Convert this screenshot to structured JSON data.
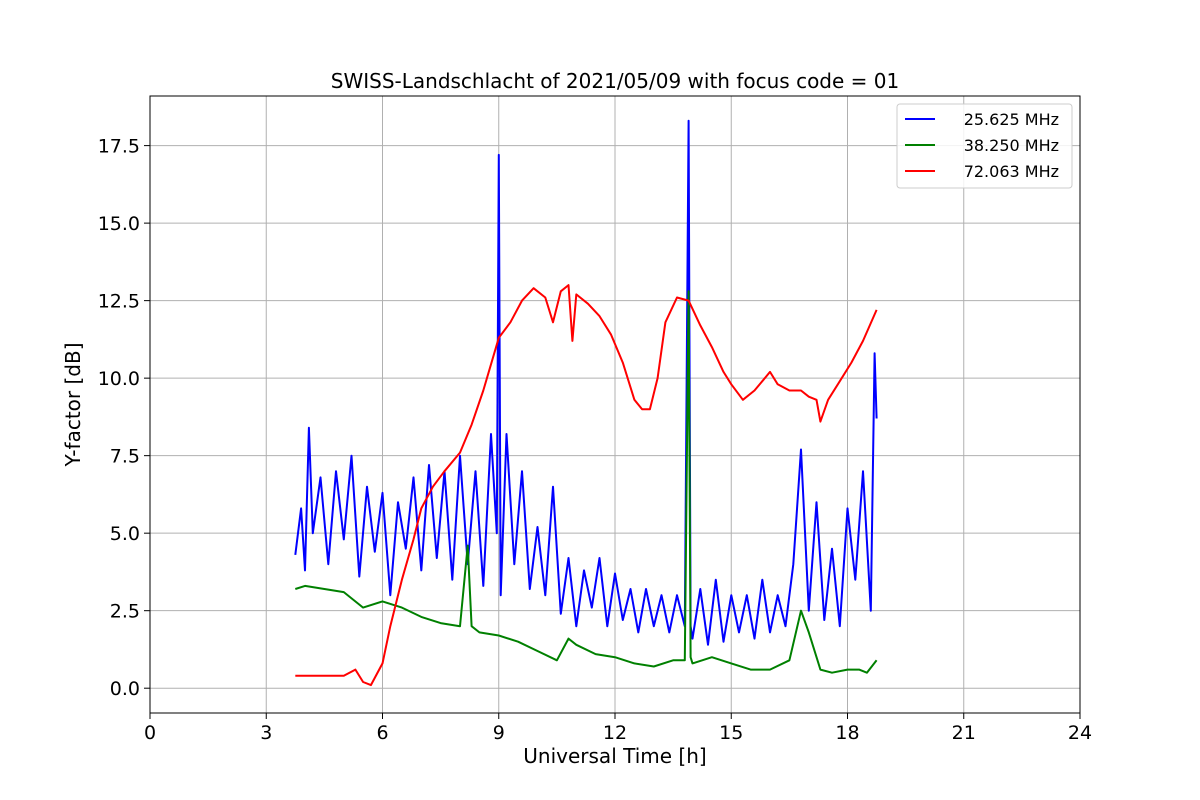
{
  "chart_data": {
    "type": "line",
    "title": "SWISS-Landschlacht of 2021/05/09 with focus code = 01",
    "xlabel": "Universal Time [h]",
    "ylabel": "Y-factor [dB]",
    "xlim": [
      0,
      24
    ],
    "ylim": [
      -0.8,
      19.1
    ],
    "xticks": [
      0,
      3,
      6,
      9,
      12,
      15,
      18,
      21,
      24
    ],
    "xtick_labels": [
      "0",
      "3",
      "6",
      "9",
      "12",
      "15",
      "18",
      "21",
      "24"
    ],
    "yticks": [
      0,
      2.5,
      5,
      7.5,
      10,
      12.5,
      15,
      17.5
    ],
    "ytick_labels": [
      "0.0",
      "2.5",
      "5.0",
      "7.5",
      "10.0",
      "12.5",
      "15.0",
      "17.5"
    ],
    "grid": true,
    "legend_position": "top-right",
    "series": [
      {
        "name": "25.625 MHz",
        "color": "#0000ff",
        "x": [
          3.75,
          3.9,
          4.0,
          4.1,
          4.2,
          4.4,
          4.6,
          4.8,
          5.0,
          5.2,
          5.4,
          5.6,
          5.8,
          6.0,
          6.2,
          6.4,
          6.6,
          6.8,
          7.0,
          7.2,
          7.4,
          7.6,
          7.8,
          8.0,
          8.2,
          8.4,
          8.6,
          8.8,
          8.95,
          9.0,
          9.05,
          9.2,
          9.4,
          9.6,
          9.8,
          10.0,
          10.2,
          10.4,
          10.6,
          10.8,
          11.0,
          11.2,
          11.4,
          11.6,
          11.8,
          12.0,
          12.2,
          12.4,
          12.6,
          12.8,
          13.0,
          13.2,
          13.4,
          13.6,
          13.8,
          13.9,
          13.95,
          14.0,
          14.2,
          14.4,
          14.6,
          14.8,
          15.0,
          15.2,
          15.4,
          15.6,
          15.8,
          16.0,
          16.2,
          16.4,
          16.6,
          16.8,
          17.0,
          17.2,
          17.4,
          17.6,
          17.8,
          18.0,
          18.2,
          18.4,
          18.6,
          18.7,
          18.75
        ],
        "y": [
          4.3,
          5.8,
          3.8,
          8.4,
          5.0,
          6.8,
          4.0,
          7.0,
          4.8,
          7.5,
          3.6,
          6.5,
          4.4,
          6.3,
          3.0,
          6.0,
          4.5,
          6.8,
          3.8,
          7.2,
          4.2,
          7.0,
          3.5,
          7.5,
          4.0,
          7.0,
          3.3,
          8.2,
          5.0,
          17.2,
          3.0,
          8.2,
          4.0,
          7.0,
          3.2,
          5.2,
          3.0,
          6.5,
          2.4,
          4.2,
          2.0,
          3.8,
          2.6,
          4.2,
          2.0,
          3.7,
          2.2,
          3.2,
          1.8,
          3.2,
          2.0,
          3.0,
          1.8,
          3.0,
          2.0,
          18.3,
          2.0,
          1.6,
          3.2,
          1.4,
          3.5,
          1.5,
          3.0,
          1.8,
          3.0,
          1.6,
          3.5,
          1.8,
          3.0,
          2.0,
          4.0,
          7.7,
          2.5,
          6.0,
          2.2,
          4.5,
          2.0,
          5.8,
          3.5,
          7.0,
          2.5,
          10.8,
          8.7
        ]
      },
      {
        "name": "38.250 MHz",
        "color": "#008000",
        "x": [
          3.75,
          4.0,
          4.5,
          5.0,
          5.5,
          6.0,
          6.5,
          7.0,
          7.5,
          8.0,
          8.2,
          8.3,
          8.5,
          9.0,
          9.5,
          10.0,
          10.5,
          10.8,
          11.0,
          11.5,
          12.0,
          12.5,
          13.0,
          13.5,
          13.8,
          13.9,
          13.95,
          14.0,
          14.5,
          15.0,
          15.5,
          16.0,
          16.5,
          16.8,
          17.0,
          17.3,
          17.6,
          18.0,
          18.3,
          18.5,
          18.75
        ],
        "y": [
          3.2,
          3.3,
          3.2,
          3.1,
          2.6,
          2.8,
          2.6,
          2.3,
          2.1,
          2.0,
          4.6,
          2.0,
          1.8,
          1.7,
          1.5,
          1.2,
          0.9,
          1.6,
          1.4,
          1.1,
          1.0,
          0.8,
          0.7,
          0.9,
          0.9,
          12.8,
          1.0,
          0.8,
          1.0,
          0.8,
          0.6,
          0.6,
          0.9,
          2.5,
          1.8,
          0.6,
          0.5,
          0.6,
          0.6,
          0.5,
          0.9
        ]
      },
      {
        "name": "72.063 MHz",
        "color": "#ff0000",
        "x": [
          3.75,
          4.0,
          4.5,
          5.0,
          5.3,
          5.5,
          5.7,
          6.0,
          6.2,
          6.5,
          6.8,
          7.0,
          7.3,
          7.6,
          8.0,
          8.3,
          8.6,
          9.0,
          9.3,
          9.6,
          9.9,
          10.2,
          10.4,
          10.6,
          10.8,
          10.9,
          11.0,
          11.3,
          11.6,
          11.9,
          12.2,
          12.5,
          12.7,
          12.9,
          13.1,
          13.3,
          13.6,
          13.9,
          14.2,
          14.5,
          14.8,
          15.0,
          15.3,
          15.6,
          15.8,
          16.0,
          16.2,
          16.5,
          16.8,
          17.0,
          17.2,
          17.3,
          17.5,
          17.8,
          18.1,
          18.4,
          18.75
        ],
        "y": [
          0.4,
          0.4,
          0.4,
          0.4,
          0.6,
          0.2,
          0.1,
          0.8,
          2.0,
          3.5,
          4.8,
          5.8,
          6.5,
          7.0,
          7.6,
          8.5,
          9.6,
          11.3,
          11.8,
          12.5,
          12.9,
          12.6,
          11.8,
          12.8,
          13.0,
          11.2,
          12.7,
          12.4,
          12.0,
          11.4,
          10.5,
          9.3,
          9.0,
          9.0,
          10.0,
          11.8,
          12.6,
          12.5,
          11.7,
          11.0,
          10.2,
          9.8,
          9.3,
          9.6,
          9.9,
          10.2,
          9.8,
          9.6,
          9.6,
          9.4,
          9.3,
          8.6,
          9.3,
          9.9,
          10.5,
          11.2,
          12.2
        ]
      }
    ]
  }
}
